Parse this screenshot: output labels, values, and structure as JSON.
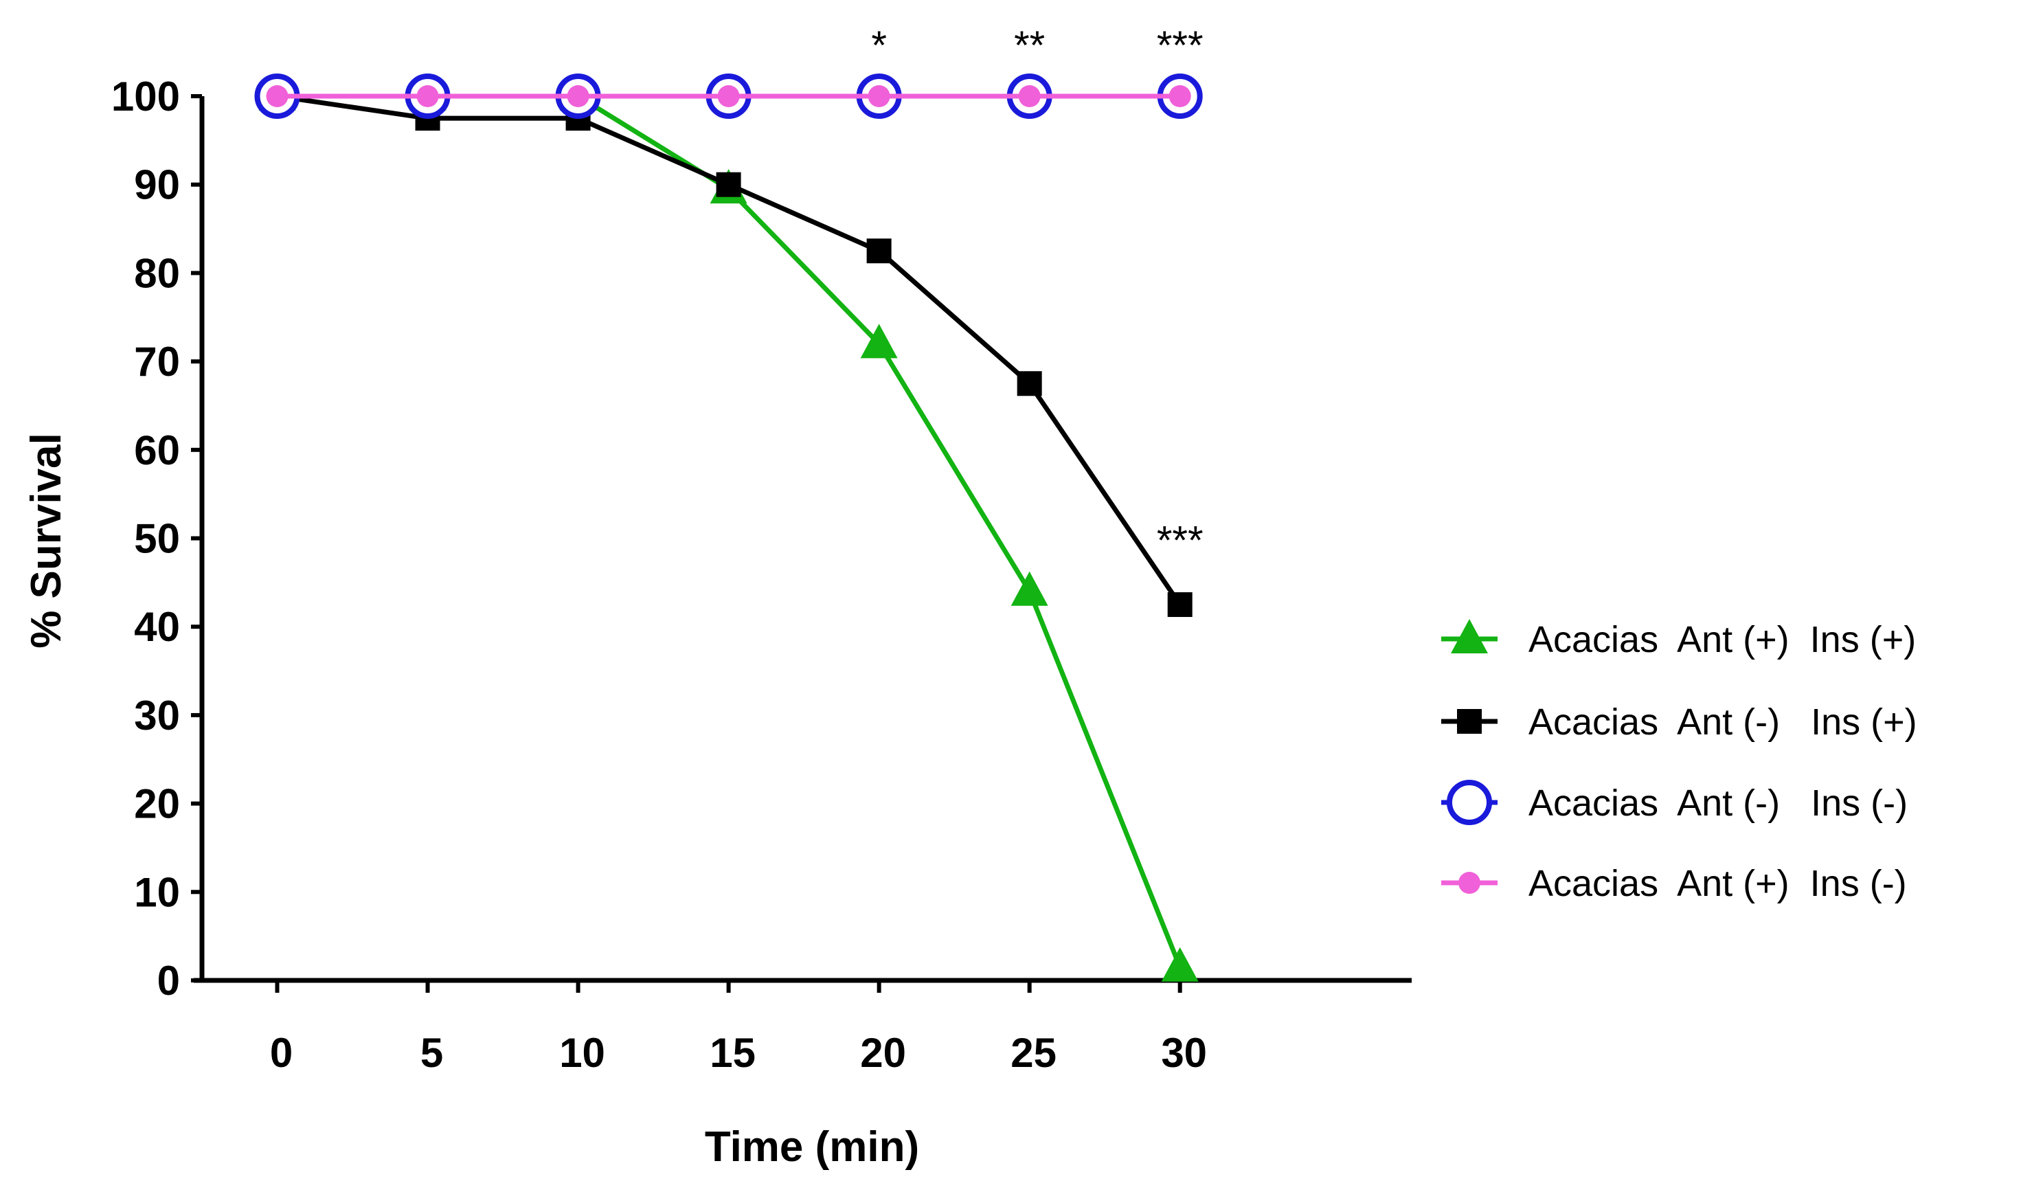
{
  "chart_data": {
    "type": "line",
    "title": "",
    "xlabel": "Time (min)",
    "ylabel": "% Survival",
    "x": [
      0,
      5,
      10,
      15,
      20,
      25,
      30
    ],
    "xticks": [
      "0",
      "5",
      "10",
      "15",
      "20",
      "25",
      "30"
    ],
    "yticks": [
      "0",
      "10",
      "20",
      "30",
      "40",
      "50",
      "60",
      "70",
      "80",
      "90",
      "100"
    ],
    "xlim": [
      -2.5,
      37.7
    ],
    "ylim": [
      0,
      100
    ],
    "grid": false,
    "legend_position": "right",
    "series": [
      {
        "name": "Acacias  Ant (+)  Ins (+)",
        "marker": "triangle",
        "color": "#12b312",
        "values": [
          100,
          100,
          100,
          89.5,
          72,
          44,
          1.5
        ]
      },
      {
        "name": "Acacias  Ant (-)   Ins (+)",
        "marker": "square",
        "color": "#000000",
        "values": [
          100,
          97.5,
          97.5,
          90,
          82.5,
          67.5,
          42.5
        ]
      },
      {
        "name": "Acacias  Ant (-)   Ins (-)",
        "marker": "open-circle",
        "color": "#1a1adb",
        "values": [
          100,
          100,
          100,
          100,
          100,
          100,
          100
        ]
      },
      {
        "name": "Acacias  Ant (+)  Ins (-)",
        "marker": "filled-circle",
        "color": "#f060d8",
        "values": [
          100,
          100,
          100,
          100,
          100,
          100,
          100
        ]
      }
    ],
    "annotations": [
      {
        "text": "*",
        "x": 20,
        "y": 107
      },
      {
        "text": "**",
        "x": 25,
        "y": 107
      },
      {
        "text": "***",
        "x": 30,
        "y": 107
      },
      {
        "text": "***",
        "x": 30,
        "y": 51
      }
    ]
  }
}
